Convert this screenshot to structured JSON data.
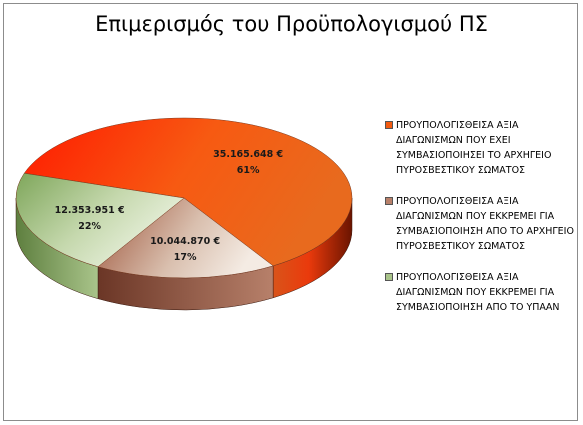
{
  "chart_data": {
    "type": "pie",
    "title": "Επιμερισμός του Προϋπολογισμού ΠΣ",
    "slices": [
      {
        "name": "ΠΡΟΥΠΟΛΟΓΙΣΘΕΙΣΑ ΑΞΙΑ ΔΙΑΓΩΝΙΣΜΩΝ ΠΟΥ ΕΧΕΙ ΣΥΜΒΑΣΙΟΠΟΙΗΣΕΙ ΤΟ ΑΡΧΗΓΕΙΟ ΠΥΡΟΣΒΕΣΤΙΚΟΥ ΣΩΜΑΤΟΣ",
        "value": 35165648,
        "value_label": "35.165.648 €",
        "percent": 61,
        "percent_label": "61%",
        "color": "#f25a10"
      },
      {
        "name": "ΠΡΟΥΠΟΛΟΓΙΣΘΕΙΣΑ ΑΞΙΑ ΔΙΑΓΩΝΙΣΜΩΝ ΠΟΥ ΕΚΚΡΕΜΕΙ ΓΙΑ ΣΥΜΒΑΣΙΟΠΟΙΗΣΗ ΑΠΟ ΤΟ ΑΡΧΗΓΕΙΟ ΠΥΡΟΣΒΕΣΤΙΚΟΥ ΣΩΜΑΤΟΣ",
        "value": 10044870,
        "value_label": "10.044.870 €",
        "percent": 17,
        "percent_label": "17%",
        "color": "#b8806a"
      },
      {
        "name": "ΠΡΟΥΠΟΛΟΓΙΣΘΕΙΣΑ ΑΞΙΑ ΔΙΑΓΩΝΙΣΜΩΝ ΠΟΥ ΕΚΚΡΕΜΕΙ ΓΙΑ ΣΥΜΒΑΣΙΟΠΟΙΗΣΗ ΑΠΟ ΤΟ ΥΠΑΑΝ",
        "value": 12353951,
        "value_label": "12.353.951 €",
        "percent": 22,
        "percent_label": "22%",
        "color": "#a9c48a"
      }
    ],
    "legend_position": "right",
    "style": "3d-pie"
  }
}
